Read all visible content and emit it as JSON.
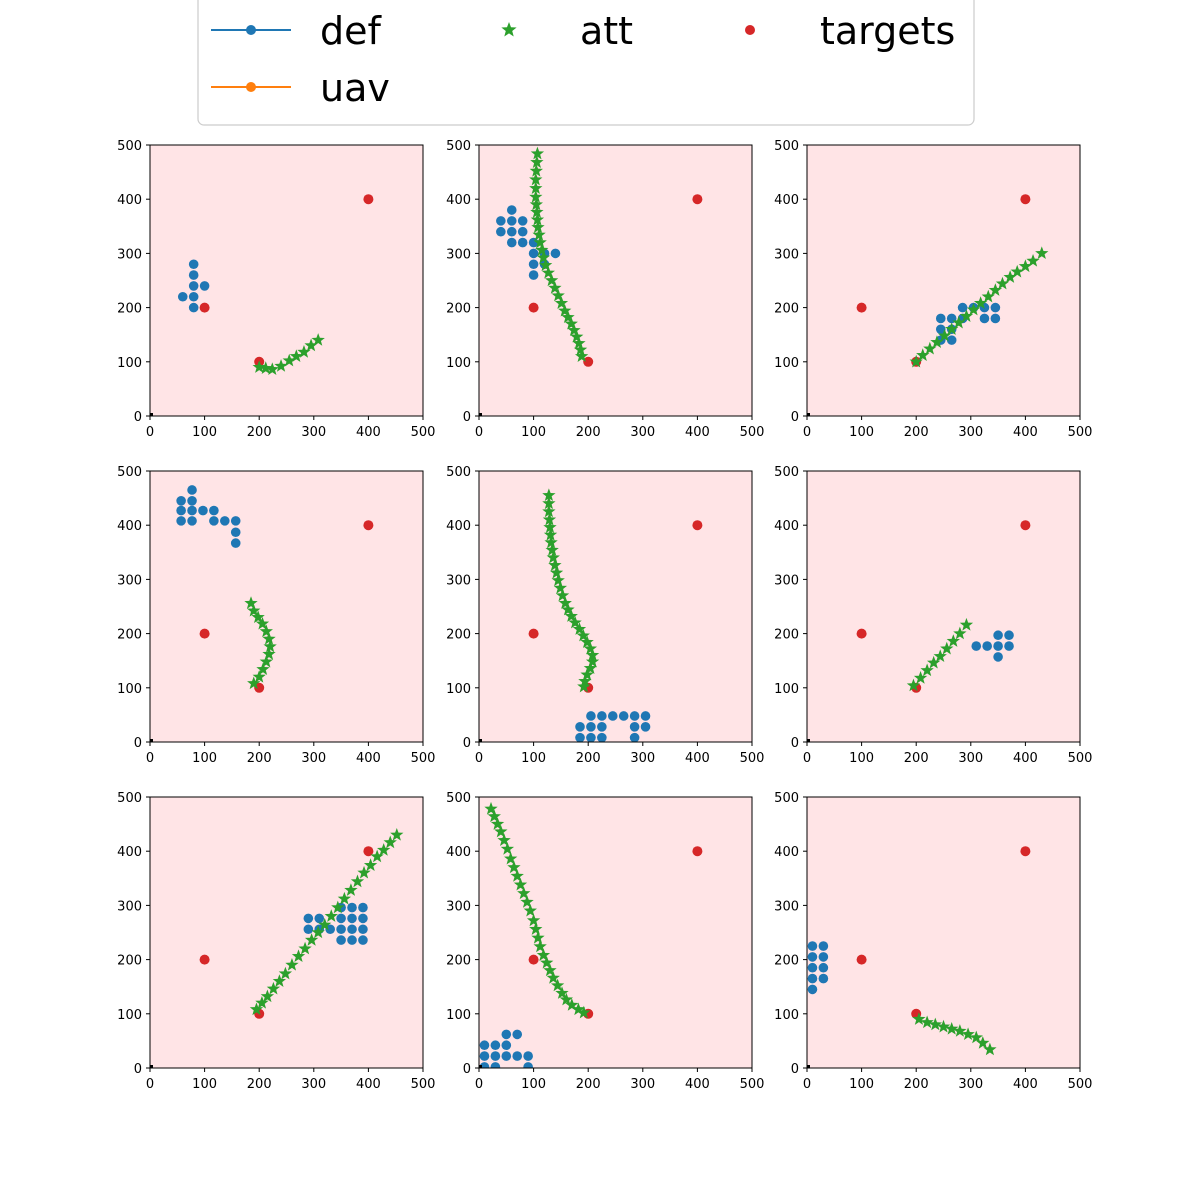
{
  "legend": {
    "placement": "top-center",
    "entries": [
      {
        "name": "def",
        "color": "#1f77b4",
        "marker": "line-circle"
      },
      {
        "name": "att",
        "color": "#2ca02c",
        "marker": "star"
      },
      {
        "name": "targets",
        "color": "#d62728",
        "marker": "circle"
      },
      {
        "name": "uav",
        "color": "#ff7f0e",
        "marker": "line-circle"
      }
    ]
  },
  "colors": {
    "def": "#1f77b4",
    "att": "#2ca02c",
    "targets": "#d62728",
    "uav": "#ff7f0e",
    "plot_background": "#ffe4e6",
    "origin": "#000000"
  },
  "chart_data": [
    {
      "type": "scatter",
      "xlim": [
        0,
        500
      ],
      "ylim": [
        0,
        500
      ],
      "xticks": [
        0,
        100,
        200,
        300,
        400,
        500
      ],
      "yticks": [
        0,
        100,
        200,
        300,
        400,
        500
      ],
      "targets": [
        [
          100,
          200
        ],
        [
          200,
          100
        ],
        [
          400,
          400
        ]
      ],
      "def": [
        [
          60,
          220
        ],
        [
          80,
          280
        ],
        [
          80,
          260
        ],
        [
          80,
          240
        ],
        [
          80,
          220
        ],
        [
          80,
          200
        ],
        [
          100,
          240
        ]
      ],
      "att": [
        [
          200,
          90
        ],
        [
          212,
          88
        ],
        [
          224,
          86
        ],
        [
          240,
          92
        ],
        [
          255,
          102
        ],
        [
          268,
          110
        ],
        [
          282,
          118
        ],
        [
          295,
          130
        ],
        [
          308,
          140
        ]
      ]
    },
    {
      "type": "scatter",
      "xlim": [
        0,
        500
      ],
      "ylim": [
        0,
        500
      ],
      "xticks": [
        0,
        100,
        200,
        300,
        400,
        500
      ],
      "yticks": [
        0,
        100,
        200,
        300,
        400,
        500
      ],
      "targets": [
        [
          100,
          200
        ],
        [
          200,
          100
        ],
        [
          400,
          400
        ]
      ],
      "def": [
        [
          40,
          360
        ],
        [
          40,
          340
        ],
        [
          60,
          380
        ],
        [
          60,
          360
        ],
        [
          60,
          340
        ],
        [
          60,
          320
        ],
        [
          80,
          360
        ],
        [
          80,
          340
        ],
        [
          80,
          320
        ],
        [
          100,
          320
        ],
        [
          100,
          300
        ],
        [
          100,
          280
        ],
        [
          100,
          260
        ],
        [
          120,
          300
        ],
        [
          120,
          280
        ],
        [
          140,
          300
        ]
      ],
      "att": [
        [
          107,
          484
        ],
        [
          106,
          468
        ],
        [
          105,
          452
        ],
        [
          104,
          436
        ],
        [
          104,
          420
        ],
        [
          104,
          404
        ],
        [
          105,
          390
        ],
        [
          106,
          376
        ],
        [
          107,
          362
        ],
        [
          108,
          348
        ],
        [
          110,
          334
        ],
        [
          112,
          320
        ],
        [
          115,
          306
        ],
        [
          118,
          292
        ],
        [
          122,
          278
        ],
        [
          127,
          264
        ],
        [
          133,
          250
        ],
        [
          139,
          236
        ],
        [
          145,
          222
        ],
        [
          151,
          208
        ],
        [
          157,
          194
        ],
        [
          163,
          182
        ],
        [
          169,
          170
        ],
        [
          174,
          158
        ],
        [
          179,
          146
        ],
        [
          183,
          134
        ],
        [
          186,
          122
        ],
        [
          188,
          110
        ]
      ]
    },
    {
      "type": "scatter",
      "xlim": [
        0,
        500
      ],
      "ylim": [
        0,
        500
      ],
      "xticks": [
        0,
        100,
        200,
        300,
        400,
        500
      ],
      "yticks": [
        0,
        100,
        200,
        300,
        400,
        500
      ],
      "targets": [
        [
          100,
          200
        ],
        [
          200,
          100
        ],
        [
          400,
          400
        ]
      ],
      "def": [
        [
          245,
          180
        ],
        [
          245,
          160
        ],
        [
          245,
          140
        ],
        [
          265,
          180
        ],
        [
          265,
          160
        ],
        [
          265,
          140
        ],
        [
          285,
          200
        ],
        [
          285,
          180
        ],
        [
          305,
          200
        ],
        [
          325,
          200
        ],
        [
          325,
          180
        ],
        [
          345,
          200
        ],
        [
          345,
          180
        ]
      ],
      "att": [
        [
          200,
          100
        ],
        [
          212,
          112
        ],
        [
          225,
          124
        ],
        [
          238,
          136
        ],
        [
          252,
          148
        ],
        [
          265,
          160
        ],
        [
          278,
          172
        ],
        [
          292,
          184
        ],
        [
          305,
          196
        ],
        [
          318,
          208
        ],
        [
          332,
          220
        ],
        [
          345,
          232
        ],
        [
          358,
          244
        ],
        [
          372,
          256
        ],
        [
          385,
          266
        ],
        [
          400,
          276
        ],
        [
          414,
          286
        ],
        [
          430,
          300
        ]
      ]
    },
    {
      "type": "scatter",
      "xlim": [
        0,
        500
      ],
      "ylim": [
        0,
        500
      ],
      "xticks": [
        0,
        100,
        200,
        300,
        400,
        500
      ],
      "yticks": [
        0,
        100,
        200,
        300,
        400,
        500
      ],
      "targets": [
        [
          100,
          200
        ],
        [
          200,
          100
        ],
        [
          400,
          400
        ]
      ],
      "def": [
        [
          57,
          445
        ],
        [
          57,
          427
        ],
        [
          57,
          408
        ],
        [
          77,
          465
        ],
        [
          77,
          445
        ],
        [
          77,
          427
        ],
        [
          77,
          408
        ],
        [
          97,
          427
        ],
        [
          117,
          427
        ],
        [
          117,
          408
        ],
        [
          137,
          408
        ],
        [
          157,
          408
        ],
        [
          157,
          387
        ],
        [
          157,
          367
        ]
      ],
      "att": [
        [
          185,
          256
        ],
        [
          190,
          242
        ],
        [
          198,
          230
        ],
        [
          206,
          218
        ],
        [
          213,
          204
        ],
        [
          218,
          190
        ],
        [
          220,
          176
        ],
        [
          218,
          162
        ],
        [
          213,
          148
        ],
        [
          207,
          134
        ],
        [
          200,
          120
        ],
        [
          190,
          108
        ]
      ]
    },
    {
      "type": "scatter",
      "xlim": [
        0,
        500
      ],
      "ylim": [
        0,
        500
      ],
      "xticks": [
        0,
        100,
        200,
        300,
        400,
        500
      ],
      "yticks": [
        0,
        100,
        200,
        300,
        400,
        500
      ],
      "targets": [
        [
          100,
          200
        ],
        [
          200,
          100
        ],
        [
          400,
          400
        ]
      ],
      "def": [
        [
          185,
          28
        ],
        [
          185,
          8
        ],
        [
          205,
          48
        ],
        [
          205,
          28
        ],
        [
          205,
          8
        ],
        [
          225,
          48
        ],
        [
          225,
          28
        ],
        [
          225,
          8
        ],
        [
          245,
          48
        ],
        [
          265,
          48
        ],
        [
          285,
          48
        ],
        [
          285,
          28
        ],
        [
          285,
          8
        ],
        [
          305,
          48
        ],
        [
          305,
          28
        ]
      ],
      "att": [
        [
          128,
          455
        ],
        [
          128,
          440
        ],
        [
          128,
          425
        ],
        [
          129,
          410
        ],
        [
          130,
          396
        ],
        [
          131,
          382
        ],
        [
          132,
          368
        ],
        [
          134,
          354
        ],
        [
          136,
          340
        ],
        [
          139,
          326
        ],
        [
          142,
          312
        ],
        [
          145,
          298
        ],
        [
          149,
          284
        ],
        [
          153,
          270
        ],
        [
          158,
          256
        ],
        [
          163,
          244
        ],
        [
          169,
          232
        ],
        [
          176,
          220
        ],
        [
          184,
          208
        ],
        [
          191,
          196
        ],
        [
          198,
          184
        ],
        [
          204,
          172
        ],
        [
          208,
          160
        ],
        [
          208,
          148
        ],
        [
          204,
          136
        ],
        [
          198,
          124
        ],
        [
          194,
          112
        ],
        [
          192,
          102
        ]
      ]
    },
    {
      "type": "scatter",
      "xlim": [
        0,
        500
      ],
      "ylim": [
        0,
        500
      ],
      "xticks": [
        0,
        100,
        200,
        300,
        400,
        500
      ],
      "yticks": [
        0,
        100,
        200,
        300,
        400,
        500
      ],
      "targets": [
        [
          100,
          200
        ],
        [
          200,
          100
        ],
        [
          400,
          400
        ]
      ],
      "def": [
        [
          310,
          177
        ],
        [
          330,
          177
        ],
        [
          350,
          197
        ],
        [
          350,
          177
        ],
        [
          350,
          157
        ],
        [
          370,
          197
        ],
        [
          370,
          177
        ]
      ],
      "att": [
        [
          195,
          104
        ],
        [
          208,
          118
        ],
        [
          220,
          132
        ],
        [
          232,
          146
        ],
        [
          244,
          158
        ],
        [
          256,
          172
        ],
        [
          268,
          186
        ],
        [
          280,
          200
        ],
        [
          292,
          216
        ]
      ]
    },
    {
      "type": "scatter",
      "xlim": [
        0,
        500
      ],
      "ylim": [
        0,
        500
      ],
      "xticks": [
        0,
        100,
        200,
        300,
        400,
        500
      ],
      "yticks": [
        0,
        100,
        200,
        300,
        400,
        500
      ],
      "targets": [
        [
          100,
          200
        ],
        [
          200,
          100
        ],
        [
          400,
          400
        ]
      ],
      "def": [
        [
          290,
          276
        ],
        [
          290,
          256
        ],
        [
          310,
          276
        ],
        [
          310,
          256
        ],
        [
          330,
          256
        ],
        [
          350,
          296
        ],
        [
          350,
          276
        ],
        [
          350,
          256
        ],
        [
          350,
          236
        ],
        [
          370,
          296
        ],
        [
          370,
          276
        ],
        [
          370,
          256
        ],
        [
          370,
          236
        ],
        [
          390,
          296
        ],
        [
          390,
          276
        ],
        [
          390,
          256
        ],
        [
          390,
          236
        ]
      ],
      "att": [
        [
          195,
          108
        ],
        [
          205,
          120
        ],
        [
          215,
          132
        ],
        [
          226,
          146
        ],
        [
          237,
          160
        ],
        [
          248,
          174
        ],
        [
          260,
          190
        ],
        [
          272,
          206
        ],
        [
          284,
          220
        ],
        [
          296,
          236
        ],
        [
          308,
          250
        ],
        [
          320,
          264
        ],
        [
          332,
          280
        ],
        [
          344,
          296
        ],
        [
          356,
          312
        ],
        [
          368,
          328
        ],
        [
          380,
          344
        ],
        [
          392,
          360
        ],
        [
          404,
          374
        ],
        [
          416,
          390
        ],
        [
          428,
          402
        ],
        [
          440,
          416
        ],
        [
          452,
          430
        ]
      ]
    },
    {
      "type": "scatter",
      "xlim": [
        0,
        500
      ],
      "ylim": [
        0,
        500
      ],
      "xticks": [
        0,
        100,
        200,
        300,
        400,
        500
      ],
      "yticks": [
        0,
        100,
        200,
        300,
        400,
        500
      ],
      "targets": [
        [
          100,
          200
        ],
        [
          200,
          100
        ],
        [
          400,
          400
        ]
      ],
      "def": [
        [
          10,
          42
        ],
        [
          10,
          22
        ],
        [
          10,
          2
        ],
        [
          30,
          42
        ],
        [
          30,
          22
        ],
        [
          30,
          2
        ],
        [
          50,
          62
        ],
        [
          50,
          42
        ],
        [
          50,
          22
        ],
        [
          70,
          62
        ],
        [
          70,
          22
        ],
        [
          90,
          22
        ],
        [
          90,
          2
        ]
      ],
      "att": [
        [
          22,
          478
        ],
        [
          28,
          464
        ],
        [
          34,
          450
        ],
        [
          40,
          436
        ],
        [
          46,
          420
        ],
        [
          52,
          404
        ],
        [
          58,
          386
        ],
        [
          64,
          370
        ],
        [
          70,
          354
        ],
        [
          76,
          338
        ],
        [
          82,
          322
        ],
        [
          88,
          306
        ],
        [
          94,
          290
        ],
        [
          100,
          272
        ],
        [
          104,
          256
        ],
        [
          108,
          240
        ],
        [
          112,
          224
        ],
        [
          118,
          208
        ],
        [
          124,
          194
        ],
        [
          130,
          180
        ],
        [
          136,
          166
        ],
        [
          144,
          152
        ],
        [
          152,
          138
        ],
        [
          160,
          126
        ],
        [
          170,
          116
        ],
        [
          182,
          108
        ],
        [
          192,
          102
        ]
      ]
    },
    {
      "type": "scatter",
      "xlim": [
        0,
        500
      ],
      "ylim": [
        0,
        500
      ],
      "xticks": [
        0,
        100,
        200,
        300,
        400,
        500
      ],
      "yticks": [
        0,
        100,
        200,
        300,
        400,
        500
      ],
      "targets": [
        [
          100,
          200
        ],
        [
          200,
          100
        ],
        [
          400,
          400
        ]
      ],
      "def": [
        [
          10,
          225
        ],
        [
          10,
          205
        ],
        [
          10,
          185
        ],
        [
          10,
          165
        ],
        [
          10,
          145
        ],
        [
          30,
          225
        ],
        [
          30,
          205
        ],
        [
          30,
          185
        ],
        [
          30,
          165
        ]
      ],
      "att": [
        [
          205,
          90
        ],
        [
          220,
          84
        ],
        [
          235,
          80
        ],
        [
          250,
          76
        ],
        [
          265,
          72
        ],
        [
          280,
          68
        ],
        [
          295,
          62
        ],
        [
          310,
          56
        ],
        [
          322,
          46
        ],
        [
          335,
          34
        ]
      ]
    }
  ]
}
